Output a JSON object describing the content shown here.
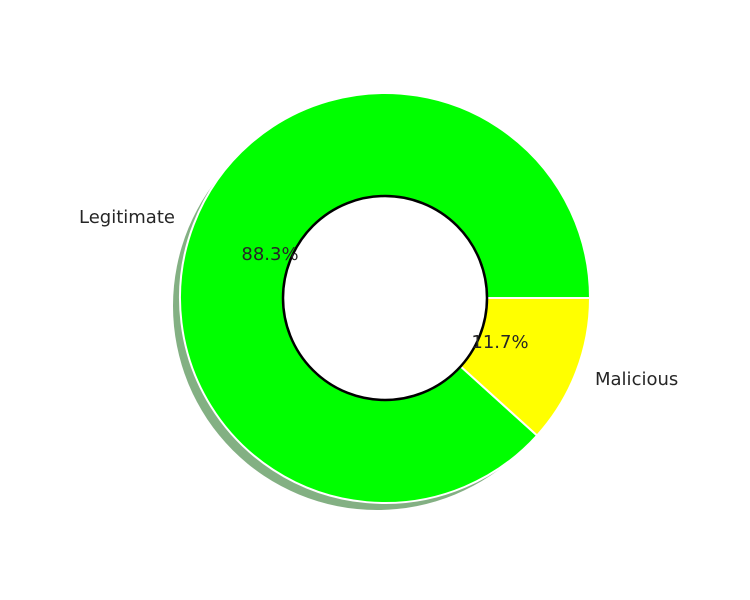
{
  "chart_data": {
    "type": "pie",
    "donut": true,
    "shadow": true,
    "categories": [
      "Legitimate",
      "Malicious"
    ],
    "values": [
      88.3,
      11.7
    ],
    "value_labels": [
      "88.3%",
      "11.7%"
    ],
    "colors": [
      "#00ff00",
      "#ffff00"
    ],
    "wedge_edge_color": "#ffffff",
    "center_ring_color": "#000000",
    "title": "",
    "legend": "none"
  }
}
